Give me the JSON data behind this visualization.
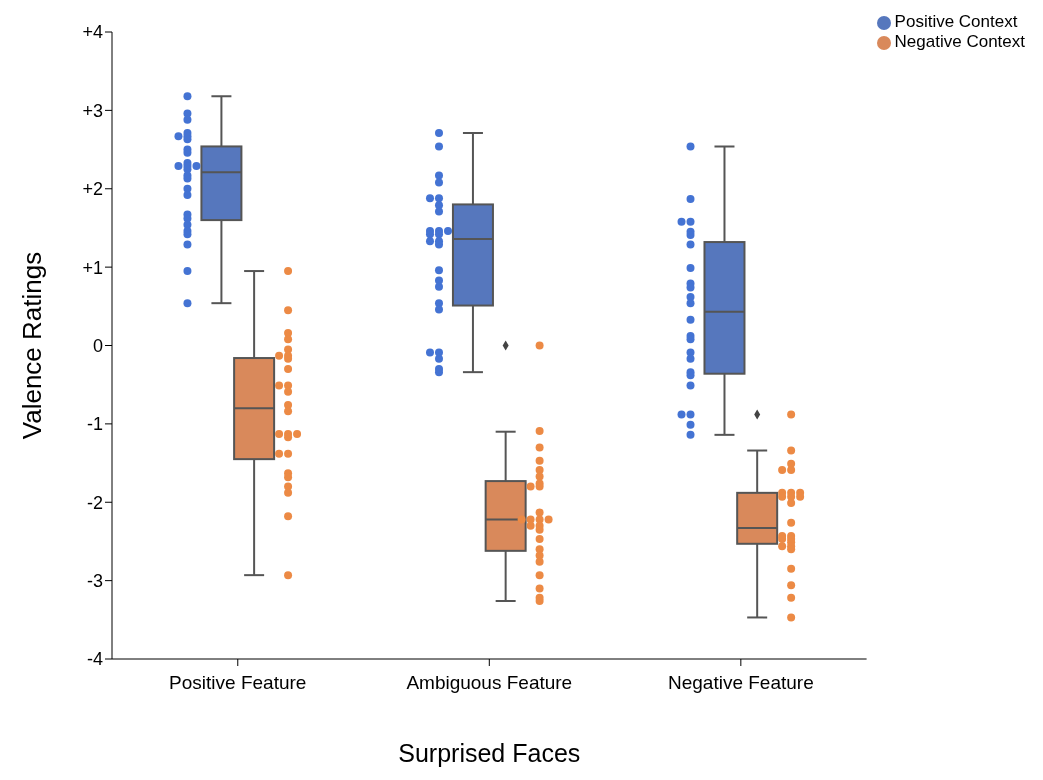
{
  "chart_data": {
    "type": "box",
    "xlabel": "Surprised Faces",
    "ylabel": "Valence Ratings",
    "categories": [
      "Positive Feature",
      "Ambiguous Feature",
      "Negative Feature"
    ],
    "ylim": [
      -4,
      4
    ],
    "yticks": [
      {
        "value": -4,
        "label": "-4"
      },
      {
        "value": -3,
        "label": "-3"
      },
      {
        "value": -2,
        "label": "-2"
      },
      {
        "value": -1,
        "label": "-1"
      },
      0,
      {
        "value": 1,
        "label": "+1"
      },
      {
        "value": 2,
        "label": "+2"
      },
      {
        "value": 3,
        "label": "+3"
      },
      {
        "value": 4,
        "label": "+4"
      }
    ],
    "legend": "top right",
    "marker": "circle",
    "series": [
      {
        "name": "Positive Context",
        "color": "#5677bd",
        "boxes": [
          {
            "low": 0.54,
            "q1": 1.6,
            "median": 2.21,
            "q3": 2.54,
            "high": 3.18
          },
          {
            "low": -0.34,
            "q1": 0.51,
            "median": 1.36,
            "q3": 1.8,
            "high": 2.71
          },
          {
            "low": -1.14,
            "q1": -0.36,
            "median": 0.43,
            "q3": 1.32,
            "high": 2.54
          }
        ]
      },
      {
        "name": "Negative Context",
        "color": "#d9895b",
        "boxes": [
          {
            "low": -2.93,
            "q1": -1.45,
            "median": -0.8,
            "q3": -0.16,
            "high": 0.95
          },
          {
            "low": -3.26,
            "q1": -2.62,
            "median": -2.22,
            "q3": -1.73,
            "high": -1.1,
            "outliers": [
              0
            ]
          },
          {
            "low": -3.47,
            "q1": -2.53,
            "median": -2.33,
            "q3": -1.88,
            "high": -1.34,
            "outliers": [
              -0.88
            ]
          }
        ]
      },
      {
        "type": "scatter",
        "color": "#4473d3",
        "x": [
          "Positive Feature",
          "Positive Feature",
          "Positive Feature",
          "Positive Feature",
          "Positive Feature",
          "Positive Feature",
          "Positive Feature",
          "Positive Feature",
          "Positive Feature",
          "Positive Feature",
          "Positive Feature",
          "Positive Feature",
          "Positive Feature",
          "Positive Feature",
          "Positive Feature",
          "Positive Feature",
          "Positive Feature",
          "Positive Feature",
          "Positive Feature",
          "Positive Feature",
          "Positive Feature",
          "Positive Feature",
          "Positive Feature",
          "Positive Feature",
          "Positive Feature",
          "Positive Feature",
          "Ambiguous Feature",
          "Ambiguous Feature",
          "Ambiguous Feature",
          "Ambiguous Feature",
          "Ambiguous Feature",
          "Ambiguous Feature",
          "Ambiguous Feature",
          "Ambiguous Feature",
          "Ambiguous Feature",
          "Ambiguous Feature",
          "Ambiguous Feature",
          "Ambiguous Feature",
          "Ambiguous Feature",
          "Ambiguous Feature",
          "Ambiguous Feature",
          "Ambiguous Feature",
          "Ambiguous Feature",
          "Ambiguous Feature",
          "Ambiguous Feature",
          "Ambiguous Feature",
          "Ambiguous Feature",
          "Ambiguous Feature",
          "Ambiguous Feature",
          "Ambiguous Feature",
          "Ambiguous Feature",
          "Ambiguous Feature",
          "Negative Feature",
          "Negative Feature",
          "Negative Feature",
          "Negative Feature",
          "Negative Feature",
          "Negative Feature",
          "Negative Feature",
          "Negative Feature",
          "Negative Feature",
          "Negative Feature",
          "Negative Feature",
          "Negative Feature",
          "Negative Feature",
          "Negative Feature",
          "Negative Feature",
          "Negative Feature",
          "Negative Feature",
          "Negative Feature",
          "Negative Feature",
          "Negative Feature",
          "Negative Feature",
          "Negative Feature",
          "Negative Feature",
          "Negative Feature"
        ],
        "values": [
          3.18,
          2.96,
          2.88,
          2.71,
          2.67,
          2.67,
          2.63,
          2.5,
          2.46,
          2.33,
          2.29,
          2.29,
          2.29,
          2.25,
          2.17,
          2.13,
          2.0,
          1.92,
          1.67,
          1.62,
          1.54,
          1.46,
          1.42,
          1.29,
          0.95,
          0.54,
          2.71,
          2.54,
          2.17,
          2.08,
          1.88,
          1.88,
          1.79,
          1.71,
          1.46,
          1.46,
          1.46,
          1.42,
          1.42,
          1.33,
          1.33,
          1.29,
          0.96,
          0.83,
          0.75,
          0.54,
          0.46,
          -0.09,
          -0.09,
          -0.17,
          -0.3,
          -0.34,
          2.54,
          1.87,
          1.58,
          1.58,
          1.45,
          1.41,
          1.29,
          0.99,
          0.79,
          0.74,
          0.62,
          0.54,
          0.33,
          0.12,
          0.08,
          -0.09,
          -0.17,
          -0.34,
          -0.38,
          -0.51,
          -0.88,
          -0.88,
          -1.01,
          -1.14
        ]
      },
      {
        "type": "scatter",
        "color": "#ec8a45",
        "x": [
          "Positive Feature",
          "Positive Feature",
          "Positive Feature",
          "Positive Feature",
          "Positive Feature",
          "Positive Feature",
          "Positive Feature",
          "Positive Feature",
          "Positive Feature",
          "Positive Feature",
          "Positive Feature",
          "Positive Feature",
          "Positive Feature",
          "Positive Feature",
          "Positive Feature",
          "Positive Feature",
          "Positive Feature",
          "Positive Feature",
          "Positive Feature",
          "Positive Feature",
          "Positive Feature",
          "Positive Feature",
          "Positive Feature",
          "Positive Feature",
          "Positive Feature",
          "Positive Feature",
          "Ambiguous Feature",
          "Ambiguous Feature",
          "Ambiguous Feature",
          "Ambiguous Feature",
          "Ambiguous Feature",
          "Ambiguous Feature",
          "Ambiguous Feature",
          "Ambiguous Feature",
          "Ambiguous Feature",
          "Ambiguous Feature",
          "Ambiguous Feature",
          "Ambiguous Feature",
          "Ambiguous Feature",
          "Ambiguous Feature",
          "Ambiguous Feature",
          "Ambiguous Feature",
          "Ambiguous Feature",
          "Ambiguous Feature",
          "Ambiguous Feature",
          "Ambiguous Feature",
          "Ambiguous Feature",
          "Ambiguous Feature",
          "Ambiguous Feature",
          "Ambiguous Feature",
          "Ambiguous Feature",
          "Negative Feature",
          "Negative Feature",
          "Negative Feature",
          "Negative Feature",
          "Negative Feature",
          "Negative Feature",
          "Negative Feature",
          "Negative Feature",
          "Negative Feature",
          "Negative Feature",
          "Negative Feature",
          "Negative Feature",
          "Negative Feature",
          "Negative Feature",
          "Negative Feature",
          "Negative Feature",
          "Negative Feature",
          "Negative Feature",
          "Negative Feature",
          "Negative Feature",
          "Negative Feature",
          "Negative Feature",
          "Negative Feature",
          "Negative Feature",
          "Negative Feature"
        ],
        "values": [
          0.95,
          0.45,
          0.16,
          0.08,
          -0.05,
          -0.13,
          -0.13,
          -0.17,
          -0.3,
          -0.51,
          -0.51,
          -0.59,
          -0.76,
          -0.84,
          -1.13,
          -1.13,
          -1.13,
          -1.17,
          -1.38,
          -1.38,
          -1.63,
          -1.68,
          -1.8,
          -1.88,
          -2.18,
          -2.93,
          0.0,
          -1.09,
          -1.3,
          -1.47,
          -1.59,
          -1.67,
          -1.76,
          -1.8,
          -1.8,
          -2.13,
          -2.22,
          -2.22,
          -2.22,
          -2.22,
          -2.3,
          -2.3,
          -2.35,
          -2.47,
          -2.6,
          -2.68,
          -2.76,
          -2.93,
          -3.1,
          -3.22,
          -3.26,
          -0.88,
          -1.34,
          -1.51,
          -1.59,
          -1.59,
          -1.88,
          -1.88,
          -1.88,
          -1.93,
          -1.93,
          -1.93,
          -2.01,
          -2.26,
          -2.43,
          -2.43,
          -2.47,
          -2.47,
          -2.51,
          -2.56,
          -2.56,
          -2.6,
          -2.85,
          -3.06,
          -3.22,
          -3.47
        ]
      }
    ]
  }
}
